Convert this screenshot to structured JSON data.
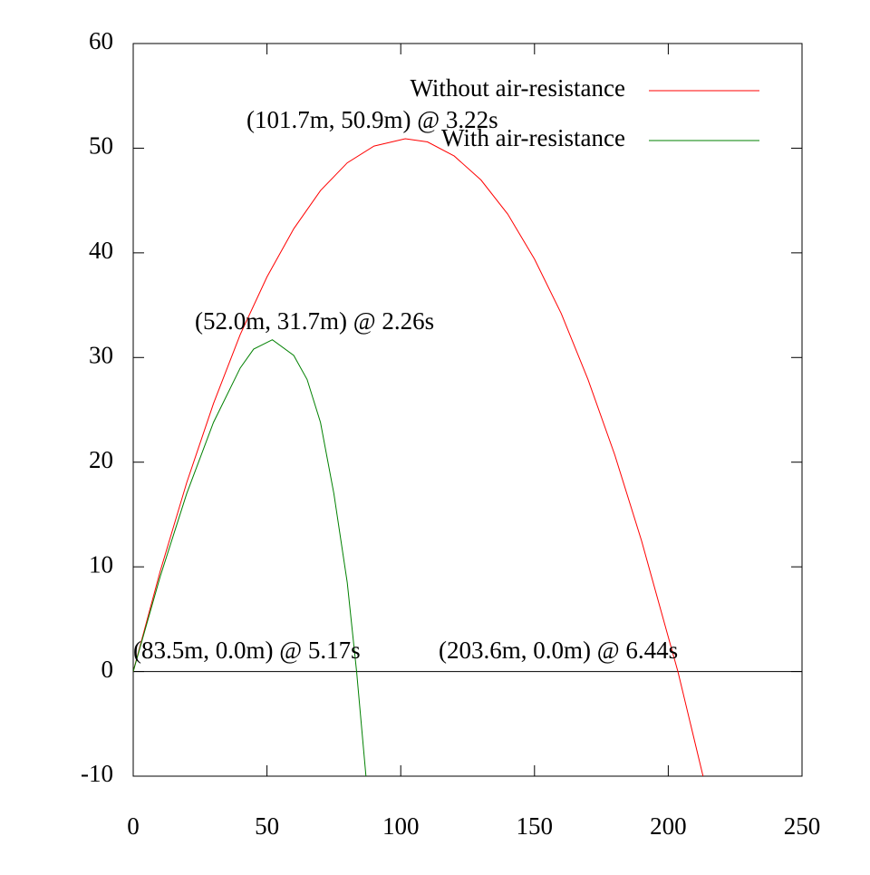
{
  "chart_data": {
    "type": "line",
    "series": [
      {
        "name": "Without air-resistance",
        "color": "#ff0000",
        "x": [
          0,
          10,
          20,
          30,
          40,
          50,
          60,
          70,
          80,
          90,
          101.7,
          110,
          120,
          130,
          140,
          150,
          160,
          170,
          180,
          190,
          200,
          203.6,
          213
        ],
        "values": [
          0,
          9.5,
          18.05,
          25.6,
          32.2,
          37.7,
          42.3,
          45.95,
          48.6,
          50.2,
          50.9,
          50.6,
          49.25,
          46.96,
          43.7,
          39.4,
          34.2,
          27.9,
          20.7,
          12.5,
          3.3,
          0,
          -10
        ]
      },
      {
        "name": "With air-resistance",
        "color": "#008000",
        "x": [
          0,
          10,
          20,
          30,
          40,
          45,
          52,
          60,
          65,
          70,
          75,
          80,
          83.5,
          87
        ],
        "values": [
          0,
          9.0,
          17.0,
          23.8,
          29.0,
          30.8,
          31.7,
          30.2,
          27.9,
          23.8,
          17.0,
          8.5,
          0,
          -10
        ]
      }
    ],
    "annotations": [
      "(101.7m, 50.9m) @ 3.22s",
      "(52.0m, 31.7m) @ 2.26s",
      "(83.5m, 0.0m) @ 5.17s",
      "(203.6m, 0.0m) @ 6.44s"
    ],
    "xlim": [
      0,
      250
    ],
    "xticks": [
      0,
      50,
      100,
      150,
      200,
      250
    ],
    "ylim": [
      -10,
      60
    ],
    "yticks": [
      -10,
      0,
      10,
      20,
      30,
      40,
      50,
      60
    ],
    "grid": false,
    "legend": "top right"
  }
}
